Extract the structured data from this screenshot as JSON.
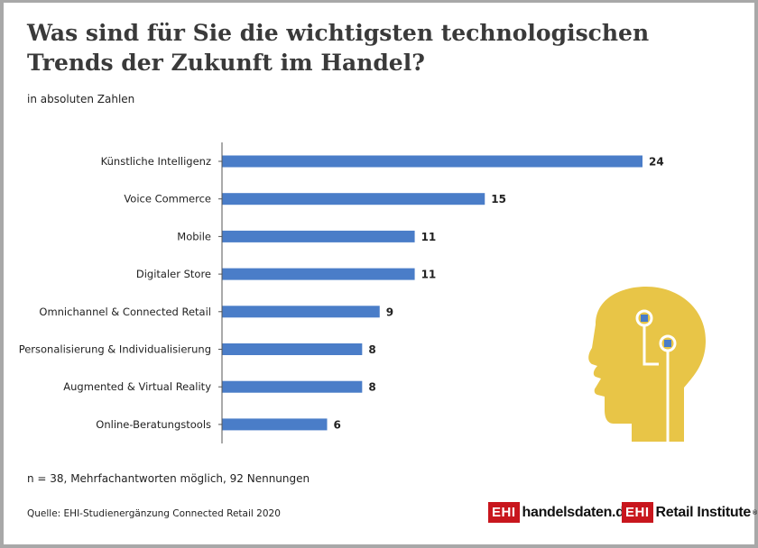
{
  "header": {
    "title": "Was sind für Sie die wichtigsten technologischen Trends der Zukunft im Handel?",
    "subtitle": "in absoluten Zahlen"
  },
  "footer": {
    "note": "n = 38, Mehrfachantworten möglich, 92 Nennungen",
    "source": "Quelle: EHI-Studienergänzung Connected Retail 2020",
    "logo1_box": "EHI",
    "logo1_text": "handelsdaten.de",
    "logo2_box": "EHI",
    "logo2_text": "Retail Institute",
    "logo2_mark": "®"
  },
  "colors": {
    "bar": "#4a7dc8",
    "axis": "#555555",
    "illustration": "#e8c547",
    "illustration_accent": "#ffffff",
    "brand": "#c8161d"
  },
  "illustration": {
    "name": "ai-head-icon"
  },
  "chart_data": {
    "type": "bar",
    "orientation": "horizontal",
    "title": "Was sind für Sie die wichtigsten technologischen Trends der Zukunft im Handel?",
    "subtitle": "in absoluten Zahlen",
    "categories": [
      "Künstliche Intelligenz",
      "Voice Commerce",
      "Mobile",
      "Digitaler Store",
      "Omnichannel & Connected Retail",
      "Personalisierung & Individualisierung",
      "Augmented & Virtual Reality",
      "Online-Beratungstools"
    ],
    "values": [
      24,
      15,
      11,
      11,
      9,
      8,
      8,
      6
    ],
    "xlim": [
      0,
      24
    ],
    "xlabel": "",
    "ylabel": "",
    "grid": false,
    "legend": "none"
  }
}
